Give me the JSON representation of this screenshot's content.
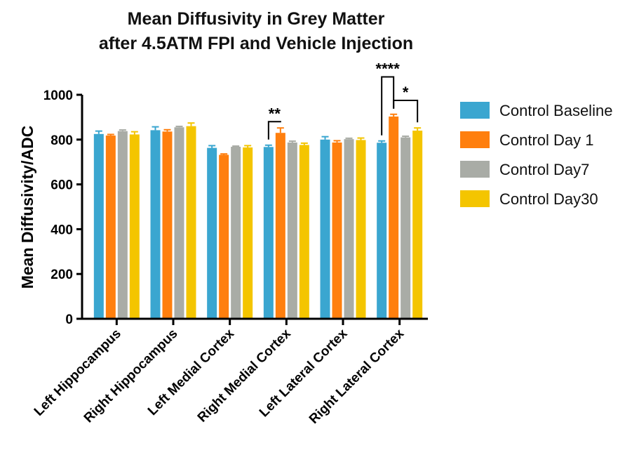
{
  "chart_data": {
    "type": "bar",
    "title_lines": [
      "Mean Diffusivity in Grey Matter",
      "after 4.5ATM FPI and Vehicle Injection"
    ],
    "ylabel": "Mean Diffusivity/ADC",
    "xlabel": "",
    "ylim": [
      0,
      1000
    ],
    "yticks": [
      "0",
      "200",
      "400",
      "600",
      "800",
      "1000"
    ],
    "categories": [
      "Left Hippocampus",
      "Right Hippocampus",
      "Left Medial Cortex",
      "Right Medial Cortex",
      "Left Lateral Cortex",
      "Right Lateral Cortex"
    ],
    "series": [
      {
        "name": "Control Baseline",
        "color": "#3aa6d0",
        "values": [
          825,
          842,
          763,
          767,
          800,
          786
        ],
        "errors": [
          13,
          15,
          10,
          8,
          13,
          8
        ]
      },
      {
        "name": "Control Day 1",
        "color": "#ff7f0e",
        "values": [
          818,
          836,
          732,
          830,
          787,
          903
        ],
        "errors": [
          5,
          8,
          4,
          22,
          8,
          10
        ]
      },
      {
        "name": "Control Day7",
        "color": "#a9aca6",
        "values": [
          838,
          855,
          768,
          787,
          802,
          810
        ],
        "errors": [
          5,
          4,
          3,
          6,
          4,
          5
        ]
      },
      {
        "name": "Control Day30",
        "color": "#f4c500",
        "values": [
          823,
          860,
          765,
          776,
          798,
          840
        ],
        "errors": [
          12,
          14,
          8,
          8,
          9,
          12
        ]
      }
    ],
    "legend_position": "right",
    "grid": false,
    "annotations": [
      {
        "text": "**",
        "category_index": 3,
        "from_series": 0,
        "to_series": 1,
        "level": 880
      },
      {
        "text": "****",
        "category_index": 5,
        "from_series": 0,
        "to_series": 1,
        "level": 1080
      },
      {
        "text": "*",
        "category_index": 5,
        "from_series": 1,
        "to_series": 3,
        "level": 975
      }
    ]
  }
}
